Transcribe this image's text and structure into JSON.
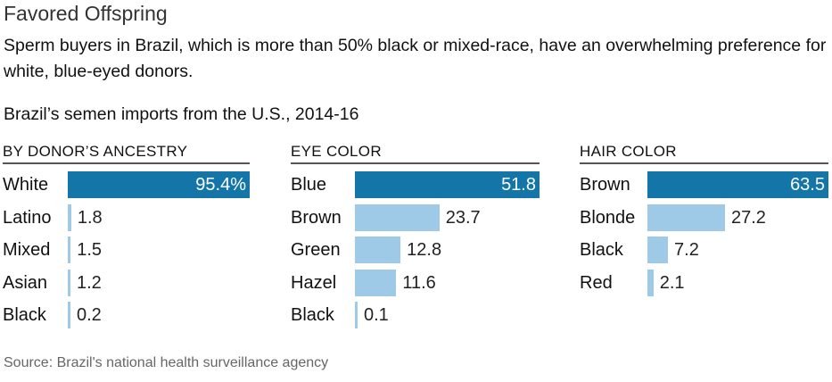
{
  "title": "Favored Offspring",
  "subtitle": "Sperm buyers in Brazil, which is more than 50% black or mixed-race, have an overwhelming preference for white, blue-eyed donors.",
  "chart_title": "Brazil’s semen imports from the U.S., 2014-16",
  "source": "Source: Brazil's national health surveillance agency",
  "colors": {
    "top_bar": "#1476a8",
    "other_bar": "#9ecae8"
  },
  "chart_data": [
    {
      "type": "bar",
      "orientation": "horizontal",
      "title": "BY DONOR’S ANCESTRY",
      "categories": [
        "White",
        "Latino",
        "Mixed",
        "Asian",
        "Black"
      ],
      "values": [
        95.4,
        1.8,
        1.5,
        1.2,
        0.2
      ],
      "labels": [
        "95.4%",
        "1.8",
        "1.5",
        "1.2",
        "0.2"
      ],
      "unit": "%"
    },
    {
      "type": "bar",
      "orientation": "horizontal",
      "title": "EYE COLOR",
      "categories": [
        "Blue",
        "Brown",
        "Green",
        "Hazel",
        "Black"
      ],
      "values": [
        51.8,
        23.7,
        12.8,
        11.6,
        0.1
      ],
      "labels": [
        "51.8",
        "23.7",
        "12.8",
        "11.6",
        "0.1"
      ],
      "unit": "%"
    },
    {
      "type": "bar",
      "orientation": "horizontal",
      "title": "HAIR COLOR",
      "categories": [
        "Brown",
        "Blonde",
        "Black",
        "Red"
      ],
      "values": [
        63.5,
        27.2,
        7.2,
        2.1
      ],
      "labels": [
        "63.5",
        "27.2",
        "7.2",
        "2.1"
      ],
      "unit": "%"
    }
  ]
}
